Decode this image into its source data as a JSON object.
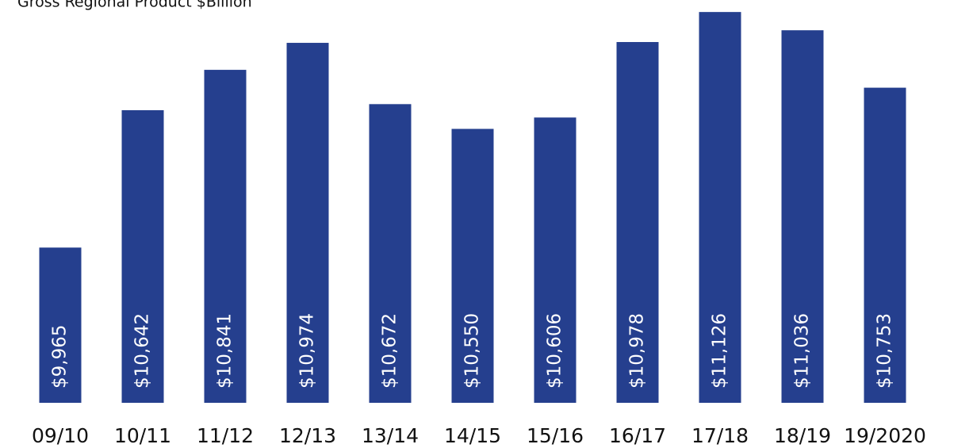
{
  "chart_data": {
    "type": "bar",
    "title": "Gross Regional Product $Billion",
    "categories": [
      "09/10",
      "10/11",
      "11/12",
      "12/13",
      "13/14",
      "14/15",
      "15/16",
      "16/17",
      "17/18",
      "18/19",
      "19/2020"
    ],
    "values": [
      9965,
      10642,
      10841,
      10974,
      10672,
      10550,
      10606,
      10978,
      11126,
      11036,
      10753
    ],
    "value_labels": [
      "$9,965",
      "$10,642",
      "$10,841",
      "$10,974",
      "$10,672",
      "$10,550",
      "$10,606",
      "$10,978",
      "$11,126",
      "$11,036",
      "$10,753"
    ],
    "color": "#253f8e",
    "ylim": [
      9200,
      11150
    ]
  }
}
